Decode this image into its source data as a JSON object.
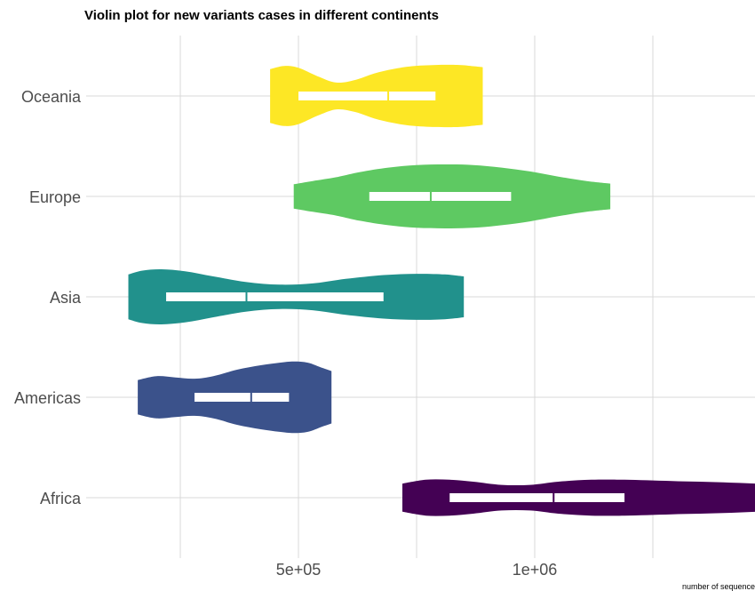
{
  "chart_data": {
    "type": "violin",
    "title": "Violin plot for new variants cases in different continents",
    "xlabel": "number of sequence",
    "ylabel": "",
    "xlim": [
      0,
      1900000
    ],
    "x_ticks": [
      {
        "value": 500000,
        "label": "5e+05"
      },
      {
        "value": 1000000,
        "label": "1e+06"
      }
    ],
    "x_minor_ticks": [
      250000,
      750000,
      1250000
    ],
    "categories": [
      "Oceania",
      "Europe",
      "Asia",
      "Americas",
      "Africa"
    ],
    "series": [
      {
        "name": "Oceania",
        "color": "#FDE725",
        "min": 440000,
        "max": 890000,
        "q1": 500000,
        "median": 690000,
        "q3": 790000,
        "profile": [
          [
            440000,
            0.84
          ],
          [
            470000,
            0.94
          ],
          [
            500000,
            0.88
          ],
          [
            540000,
            0.62
          ],
          [
            580000,
            0.42
          ],
          [
            620000,
            0.5
          ],
          [
            660000,
            0.7
          ],
          [
            700000,
            0.84
          ],
          [
            740000,
            0.93
          ],
          [
            790000,
            0.97
          ],
          [
            840000,
            0.97
          ],
          [
            870000,
            0.93
          ],
          [
            890000,
            0.9
          ]
        ]
      },
      {
        "name": "Europe",
        "color": "#5EC962",
        "min": 490000,
        "max": 1160000,
        "q1": 650000,
        "median": 780000,
        "q3": 950000,
        "profile": [
          [
            490000,
            0.38
          ],
          [
            530000,
            0.48
          ],
          [
            580000,
            0.6
          ],
          [
            630000,
            0.76
          ],
          [
            690000,
            0.9
          ],
          [
            750000,
            0.98
          ],
          [
            810000,
            1.0
          ],
          [
            870000,
            0.98
          ],
          [
            930000,
            0.9
          ],
          [
            990000,
            0.78
          ],
          [
            1050000,
            0.62
          ],
          [
            1110000,
            0.48
          ],
          [
            1160000,
            0.4
          ]
        ]
      },
      {
        "name": "Asia",
        "color": "#21918C",
        "min": 140000,
        "max": 850000,
        "q1": 220000,
        "median": 390000,
        "q3": 680000,
        "profile": [
          [
            140000,
            0.7
          ],
          [
            170000,
            0.82
          ],
          [
            210000,
            0.86
          ],
          [
            260000,
            0.8
          ],
          [
            320000,
            0.64
          ],
          [
            390000,
            0.46
          ],
          [
            460000,
            0.38
          ],
          [
            530000,
            0.42
          ],
          [
            600000,
            0.56
          ],
          [
            680000,
            0.68
          ],
          [
            750000,
            0.72
          ],
          [
            810000,
            0.7
          ],
          [
            850000,
            0.64
          ]
        ]
      },
      {
        "name": "Americas",
        "color": "#3B528B",
        "min": 160000,
        "max": 570000,
        "q1": 280000,
        "median": 400000,
        "q3": 480000,
        "profile": [
          [
            160000,
            0.54
          ],
          [
            200000,
            0.66
          ],
          [
            240000,
            0.62
          ],
          [
            280000,
            0.58
          ],
          [
            320000,
            0.66
          ],
          [
            370000,
            0.86
          ],
          [
            420000,
            1.0
          ],
          [
            460000,
            1.08
          ],
          [
            490000,
            1.12
          ],
          [
            520000,
            1.08
          ],
          [
            550000,
            0.92
          ],
          [
            570000,
            0.82
          ]
        ]
      },
      {
        "name": "Africa",
        "color": "#440154",
        "min": 720000,
        "max": 1660000,
        "q1": 820000,
        "median": 1040000,
        "q3": 1190000,
        "profile": [
          [
            720000,
            0.44
          ],
          [
            770000,
            0.56
          ],
          [
            820000,
            0.56
          ],
          [
            870000,
            0.5
          ],
          [
            930000,
            0.4
          ],
          [
            990000,
            0.4
          ],
          [
            1050000,
            0.5
          ],
          [
            1120000,
            0.56
          ],
          [
            1190000,
            0.56
          ],
          [
            1290000,
            0.52
          ],
          [
            1400000,
            0.48
          ],
          [
            1510000,
            0.4
          ],
          [
            1600000,
            0.26
          ],
          [
            1660000,
            0.18
          ]
        ]
      }
    ],
    "box_color": "#FFFFFF",
    "grid": true,
    "legend": "none"
  }
}
